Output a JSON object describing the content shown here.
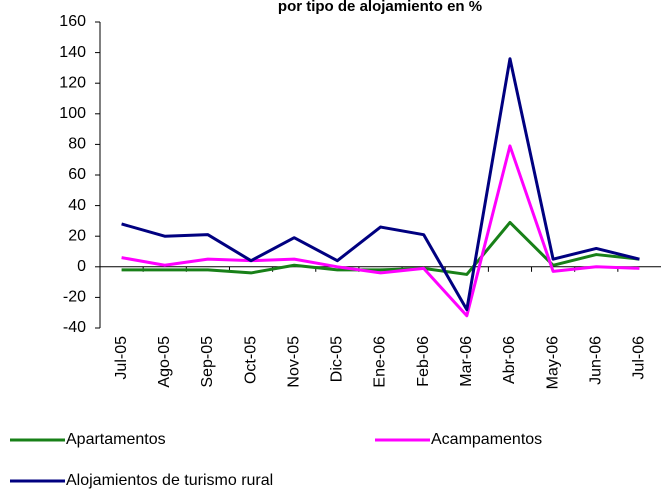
{
  "chart_data": {
    "type": "line",
    "title": "por tipo de alojamiento en %",
    "categories": [
      "Jul-05",
      "Ago-05",
      "Sep-05",
      "Oct-05",
      "Nov-05",
      "Dic-05",
      "Ene-06",
      "Feb-06",
      "Mar-06",
      "Abr-06",
      "May-06",
      "Jun-06",
      "Jul-06"
    ],
    "series": [
      {
        "name": "Apartamentos",
        "color": "#188018",
        "values": [
          -2,
          -2,
          -2,
          -4,
          1,
          -2,
          -2,
          -1,
          -5,
          29,
          1,
          8,
          5
        ]
      },
      {
        "name": "Acampamentos",
        "color": "#ff00ff",
        "values": [
          6,
          1,
          5,
          4,
          5,
          0,
          -4,
          -1,
          -32,
          79,
          -3,
          0,
          -1
        ]
      },
      {
        "name": "Alojamientos de turismo rural",
        "color": "#000080",
        "values": [
          28,
          20,
          21,
          4,
          19,
          4,
          26,
          21,
          -28,
          136,
          5,
          12,
          5
        ]
      }
    ],
    "ylim": [
      -40,
      160
    ],
    "yticks": [
      -40,
      -20,
      0,
      20,
      40,
      60,
      80,
      100,
      120,
      140,
      160
    ],
    "grid": false
  }
}
